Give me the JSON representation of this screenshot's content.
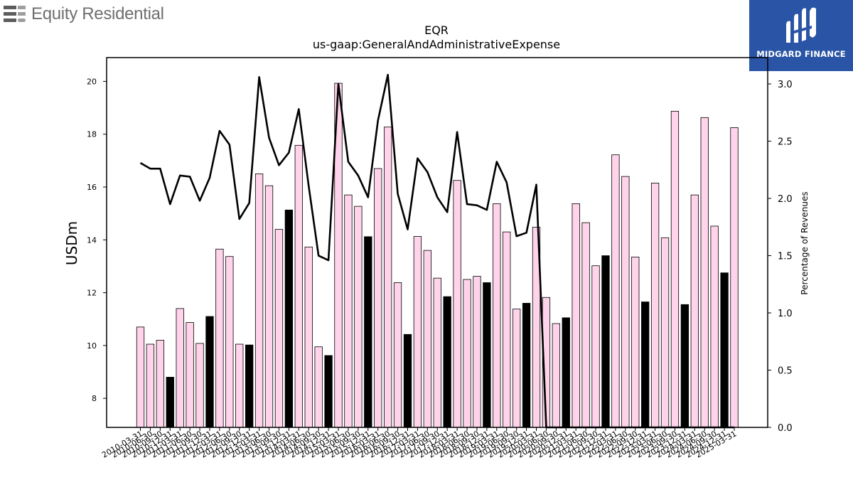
{
  "logos": {
    "left_text": "Equity Residential",
    "right_text": "MIDGARD FINANCE",
    "right_bg": "#2a55a6"
  },
  "chart_data": {
    "type": "bar",
    "title": "EQR",
    "subtitle": "us-gaap:GeneralAndAdministrativeExpense",
    "ylabel": "USDm",
    "y2label": "Percentage of Revenues",
    "ylim": [
      6.9,
      20.9
    ],
    "y2lim": [
      0.0,
      3.23
    ],
    "yticks": [
      8,
      10,
      12,
      14,
      16,
      18,
      20
    ],
    "y2ticks": [
      0.0,
      0.5,
      1.0,
      1.5,
      2.0,
      2.5,
      3.0
    ],
    "bar_colors": {
      "quarter": "#ffd3ea",
      "annual": "#000000"
    },
    "line_color": "#000000",
    "categories": [
      "2010-03-31",
      "2010-06-30",
      "2010-09-30",
      "2010-12-31",
      "2011-03-31",
      "2011-06-30",
      "2011-09-30",
      "2011-12-31",
      "2012-03-31",
      "2012-06-30",
      "2012-09-30",
      "2012-12-31",
      "2013-03-31",
      "2013-06-30",
      "2013-09-30",
      "2013-12-31",
      "2014-03-31",
      "2014-06-30",
      "2014-09-30",
      "2014-12-31",
      "2015-03-31",
      "2015-06-30",
      "2015-09-30",
      "2015-12-31",
      "2016-03-31",
      "2016-06-30",
      "2016-09-30",
      "2016-12-31",
      "2017-03-31",
      "2017-06-30",
      "2017-09-30",
      "2017-12-31",
      "2018-03-31",
      "2018-06-30",
      "2018-09-30",
      "2018-12-31",
      "2019-03-31",
      "2019-06-30",
      "2019-09-30",
      "2019-12-31",
      "2020-03-31",
      "2020-06-30",
      "2020-09-30",
      "2020-12-31",
      "2021-03-31",
      "2021-06-30",
      "2021-09-30",
      "2021-12-31",
      "2022-03-31",
      "2022-06-30",
      "2022-09-30",
      "2022-12-31",
      "2023-03-31",
      "2023-06-30",
      "2023-09-30",
      "2023-12-31",
      "2024-03-31",
      "2024-06-30",
      "2024-09-30",
      "2024-12-31",
      "2025-03-31"
    ],
    "xtick_labels": [
      "2010-03-31",
      "2010-06-30",
      "2010-09-30",
      "2010-12-31",
      "2011-03-31",
      "2011-06-30",
      "2011-09-30",
      "2011-12-31",
      "2012-03-31",
      "2012-06-30",
      "2012-09-30",
      "2012-12-31",
      "2013-03-31",
      "2013-06-30",
      "2013-09-30",
      "2013-12-31",
      "2014-03-31",
      "2014-06-30",
      "2014-09-30",
      "2014-12-31",
      "2015-03-31",
      "2015-06-30",
      "2015-09-30",
      "2015-12-31",
      "2016-03-31",
      "2016-06-30",
      "2016-09-30",
      "2016-12-31",
      "2017-03-31",
      "2017-06-30",
      "2017-09-30",
      "2017-12-31",
      "2018-03-31",
      "2018-06-30",
      "2018-09-30",
      "2018-12-31",
      "2019-03-31",
      "2019-06-30",
      "2019-09-30",
      "2019-12-31",
      "2020-03-31",
      "2020-06-30",
      "2020-09-30",
      "2020-12-31",
      "2021-03-31",
      "2021-06-30",
      "2021-09-30",
      "2021-12-31",
      "2022-03-31",
      "2022-06-30",
      "2022-09-30",
      "2022-12-31",
      "2023-03-31",
      "2023-06-30",
      "2023-09-30",
      "2023-12-31",
      "2024-03-31",
      "2024-06-30",
      "2024-09-30",
      "2024-12-31",
      "2025-03-31"
    ],
    "bars": [
      10.7,
      10.05,
      10.2,
      8.8,
      11.4,
      10.87,
      10.08,
      11.1,
      13.65,
      13.37,
      10.05,
      10.02,
      16.5,
      16.05,
      14.4,
      15.13,
      17.58,
      13.73,
      9.95,
      9.62,
      19.93,
      15.7,
      15.27,
      14.12,
      16.7,
      18.27,
      12.38,
      10.42,
      14.13,
      13.6,
      12.55,
      11.85,
      16.25,
      12.5,
      12.62,
      12.38,
      15.37,
      14.3,
      11.38,
      11.6,
      14.48,
      11.82,
      10.83,
      11.05,
      15.37,
      14.65,
      13.02,
      13.4,
      17.22,
      16.4,
      13.35,
      11.65,
      16.15,
      14.08,
      18.87,
      11.55,
      15.7,
      18.63,
      14.52,
      12.75,
      18.25
    ],
    "annual": [
      false,
      false,
      false,
      true,
      false,
      false,
      false,
      true,
      false,
      false,
      false,
      true,
      false,
      false,
      false,
      true,
      false,
      false,
      false,
      true,
      false,
      false,
      false,
      true,
      false,
      false,
      false,
      true,
      false,
      false,
      false,
      true,
      false,
      false,
      false,
      true,
      false,
      false,
      false,
      true,
      false,
      false,
      false,
      true,
      false,
      false,
      false,
      true,
      false,
      false,
      false,
      true,
      false,
      false,
      false,
      true,
      false,
      false,
      false,
      true,
      false
    ],
    "pct_revenue": [
      2.31,
      2.26,
      2.26,
      1.95,
      2.2,
      2.19,
      1.98,
      2.18,
      2.59,
      2.47,
      1.82,
      1.96,
      3.06,
      2.53,
      2.29,
      2.4,
      2.78,
      2.11,
      1.5,
      1.46,
      3.0,
      2.32,
      2.2,
      2.01,
      2.68,
      3.08,
      2.04,
      1.73,
      2.35,
      2.23,
      2.01,
      1.88,
      2.58,
      1.95,
      1.94,
      1.9,
      2.32,
      2.14,
      1.67,
      1.7,
      2.12,
      0.0,
      0.0,
      0.0,
      0.0,
      0.0,
      0.0,
      0.0,
      0.0,
      0.0,
      0.0,
      0.0,
      0.0,
      0.0,
      0.0,
      0.0,
      0.0,
      0.0,
      0.0,
      0.0,
      0.0
    ]
  }
}
